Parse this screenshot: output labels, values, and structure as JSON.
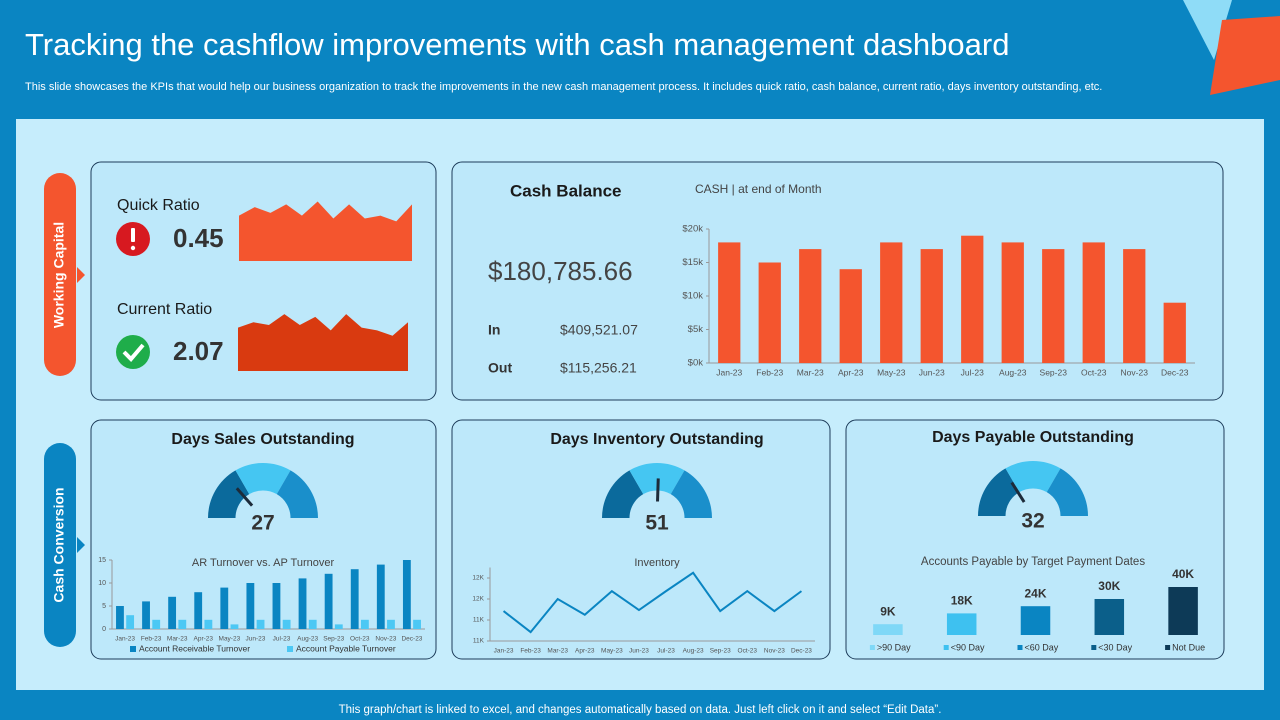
{
  "header": {
    "title": "Tracking the cashflow improvements with cash management dashboard",
    "subtitle": "This slide showcases the KPIs that would help our business organization to track the improvements in the new cash management process. It includes quick ratio, cash balance, current ratio, days inventory outstanding, etc."
  },
  "footer": "This graph/chart is linked to excel, and changes automatically based on data. Just left click on it and select “Edit Data”.",
  "sections": [
    "Working Capital",
    "Cash Conversion"
  ],
  "kpis": {
    "quick_ratio": {
      "label": "Quick Ratio",
      "value": "0.45"
    },
    "current_ratio": {
      "label": "Current Ratio",
      "value": "2.07"
    }
  },
  "cash_summary": {
    "title": "Cash Balance",
    "total": "$180,785.66",
    "in_label": "In",
    "in_value": "$409,521.07",
    "out_label": "Out",
    "out_value": "$115,256.21"
  },
  "chart_data": [
    {
      "type": "area",
      "color": "#f4552e",
      "ylim": [
        0,
        12
      ],
      "values": [
        8,
        9.5,
        8.5,
        10,
        8,
        10.5,
        7.5,
        10,
        7.5,
        8,
        7,
        10
      ]
    },
    {
      "type": "area",
      "color": "#d93a10",
      "ylim": [
        0,
        12
      ],
      "values": [
        8,
        9,
        8.5,
        10.5,
        8.5,
        10,
        7.5,
        10.5,
        8,
        7.5,
        6.5,
        9
      ]
    },
    {
      "type": "bar",
      "title": "CASH | at end of Month",
      "color": "#f4552e",
      "categories": [
        "Jan-23",
        "Feb-23",
        "Mar-23",
        "Apr-23",
        "May-23",
        "Jun-23",
        "Jul-23",
        "Aug-23",
        "Sep-23",
        "Oct-23",
        "Nov-23",
        "Dec-23"
      ],
      "values": [
        18,
        15,
        17,
        14,
        18,
        17,
        19,
        18,
        17,
        18,
        17,
        9
      ],
      "ylim": [
        0,
        20
      ],
      "yticks": [
        {
          "value": 0,
          "label": "$0k"
        },
        {
          "value": 5,
          "label": "$5k"
        },
        {
          "value": 10,
          "label": "$10k"
        },
        {
          "value": 15,
          "label": "$15k"
        },
        {
          "value": 20,
          "label": "$20k"
        }
      ]
    },
    {
      "type": "gauge",
      "title": "Days Sales Outstanding",
      "value": 27,
      "ylim": [
        0,
        100
      ]
    },
    {
      "type": "gauge",
      "title": "Days Inventory Outstanding",
      "value": 51,
      "ylim": [
        0,
        100
      ]
    },
    {
      "type": "gauge",
      "title": "Days Payable Outstanding",
      "value": 32,
      "ylim": [
        0,
        100
      ]
    },
    {
      "type": "bar",
      "title": "AR Turnover vs. AP Turnover",
      "categories": [
        "Jan-23",
        "Feb-23",
        "Mar-23",
        "Apr-23",
        "May-23",
        "Jun-23",
        "Jul-23",
        "Aug-23",
        "Sep-23",
        "Oct-23",
        "Nov-23",
        "Dec-23"
      ],
      "series": [
        {
          "name": "Account Receivable Turnover",
          "color": "#0a85c2",
          "values": [
            5,
            6,
            7,
            8,
            9,
            10,
            10,
            11,
            12,
            13,
            14,
            15
          ]
        },
        {
          "name": "Account Payable Turnover",
          "color": "#4cc8f4",
          "values": [
            3,
            2,
            2,
            2,
            1,
            2,
            2,
            2,
            1,
            2,
            2,
            2
          ]
        }
      ],
      "ylim": [
        0,
        15
      ],
      "yticks": [
        0,
        5,
        10,
        15
      ],
      "legend": "bottom"
    },
    {
      "type": "line",
      "title": "Inventory",
      "color": "#0a85c2",
      "categories": [
        "Jan-23",
        "Feb-23",
        "Mar-23",
        "Apr-23",
        "May-23",
        "Jun-23",
        "Jul-23",
        "Aug-23",
        "Sep-23",
        "Oct-23",
        "Nov-23",
        "Dec-23"
      ],
      "values": [
        11.57,
        11.17,
        11.8,
        11.5,
        11.95,
        11.59,
        11.95,
        12.3,
        11.57,
        11.95,
        11.57,
        11.95
      ],
      "ylim": [
        11,
        12.4
      ],
      "yticks": [
        {
          "value": 11,
          "label": "11K"
        },
        {
          "value": 11.4,
          "label": "11K"
        },
        {
          "value": 11.8,
          "label": "12K"
        },
        {
          "value": 12.2,
          "label": "12K"
        }
      ]
    },
    {
      "type": "bar",
      "title": "Accounts Payable by Target Payment Dates",
      "categories": [
        ">90 Day",
        "<90 Day",
        "<60 Day",
        "<30 Day",
        "Not Due"
      ],
      "colors": [
        "#7fd8f7",
        "#3ec1f0",
        "#0a85c2",
        "#0b5f8a",
        "#0d3a57"
      ],
      "values": [
        9,
        18,
        24,
        30,
        40
      ],
      "value_labels": [
        "9K",
        "18K",
        "24K",
        "30K",
        "40K"
      ],
      "ylim": [
        0,
        40
      ],
      "legend": "bottom"
    }
  ]
}
